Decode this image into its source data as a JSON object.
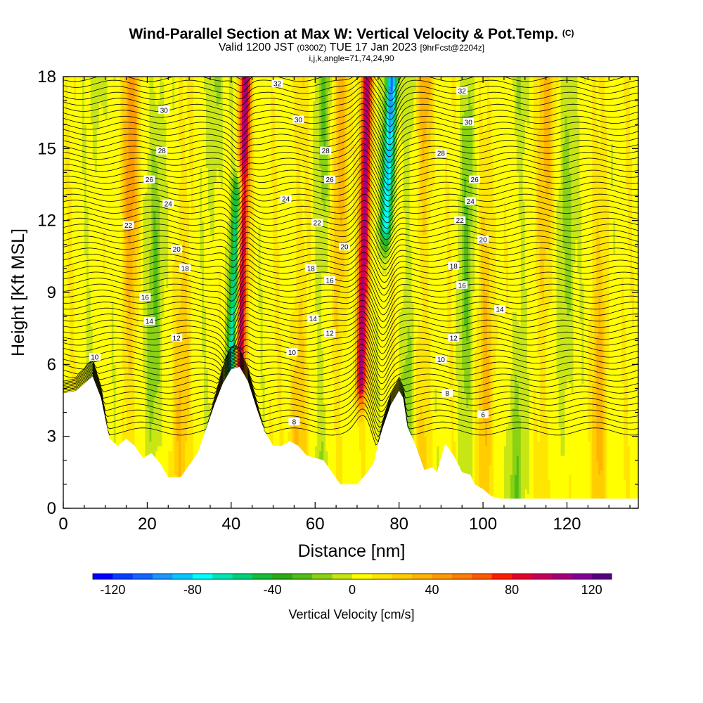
{
  "header": {
    "title": "Wind-Parallel Section at Max W: Vertical Velocity & Pot.Temp.",
    "title_mark": "(C)",
    "subtitle_pre": "Valid 1200 JST",
    "subtitle_mid": "(0300Z)",
    "subtitle_main": "TUE 17 Jan 2023",
    "subtitle_post": "[9hrFcst@2204z]",
    "params": "i,j,k,angle=71,74,24,90"
  },
  "chart_data": {
    "type": "heatmap",
    "xlabel": "Distance [nm]",
    "ylabel": "Height [Kft MSL]",
    "xlim": [
      0,
      137
    ],
    "ylim": [
      0,
      18
    ],
    "x_ticks": [
      0,
      20,
      40,
      60,
      80,
      100,
      120
    ],
    "y_ticks": [
      0,
      3,
      6,
      9,
      12,
      15,
      18
    ],
    "colorbar": {
      "label": "Vertical Velocity [cm/s]",
      "range": [
        -130,
        130
      ],
      "ticks": [
        -120,
        -80,
        -40,
        0,
        40,
        80,
        120
      ],
      "colors": [
        "#0000ff",
        "#0a3cff",
        "#1464ff",
        "#1e96ff",
        "#00c8ff",
        "#00ffff",
        "#00e6b4",
        "#00d278",
        "#14be3c",
        "#2daa14",
        "#50be14",
        "#8cd214",
        "#c8e614",
        "#ffff00",
        "#ffe600",
        "#ffcd00",
        "#ffb400",
        "#ff9b00",
        "#ff7d00",
        "#ff5a00",
        "#ff1e00",
        "#e6002d",
        "#c8005a",
        "#a50078",
        "#820096",
        "#5a0082"
      ]
    },
    "updrafts": [
      {
        "x": 42.5,
        "w": 100
      },
      {
        "x": 71.5,
        "w": 95
      },
      {
        "x": 16,
        "w": 40
      },
      {
        "x": 28,
        "w": 25
      },
      {
        "x": 56,
        "w": 30
      },
      {
        "x": 66,
        "w": 30
      },
      {
        "x": 86,
        "w": 35
      },
      {
        "x": 101,
        "w": 25
      },
      {
        "x": 115,
        "w": 30
      },
      {
        "x": 128,
        "w": 25
      }
    ],
    "downdrafts": [
      {
        "x": 41,
        "w": -80
      },
      {
        "x": 76.5,
        "w": -85
      },
      {
        "x": 8,
        "w": -25
      },
      {
        "x": 22,
        "w": -30
      },
      {
        "x": 36,
        "w": -25
      },
      {
        "x": 62,
        "w": -30
      },
      {
        "x": 82,
        "w": -30
      },
      {
        "x": 96,
        "w": -25
      },
      {
        "x": 108,
        "w": -30
      },
      {
        "x": 120,
        "w": -25
      }
    ],
    "terrain_kft": [
      [
        0,
        4.8
      ],
      [
        3,
        4.9
      ],
      [
        7,
        5.5
      ],
      [
        9,
        4.6
      ],
      [
        11,
        2.9
      ],
      [
        13,
        2.6
      ],
      [
        15,
        2.9
      ],
      [
        17,
        2.6
      ],
      [
        19,
        2.1
      ],
      [
        21,
        2.3
      ],
      [
        23,
        1.9
      ],
      [
        25,
        1.3
      ],
      [
        28,
        1.3
      ],
      [
        30,
        1.8
      ],
      [
        32,
        2.3
      ],
      [
        34,
        3.3
      ],
      [
        36,
        4.3
      ],
      [
        38,
        5.2
      ],
      [
        39,
        5.5
      ],
      [
        40,
        5.8
      ],
      [
        42,
        5.9
      ],
      [
        44,
        5.3
      ],
      [
        46,
        4.2
      ],
      [
        48,
        3.2
      ],
      [
        50,
        2.6
      ],
      [
        52,
        2.6
      ],
      [
        54,
        2.8
      ],
      [
        56,
        2.6
      ],
      [
        58,
        2.2
      ],
      [
        60,
        2.1
      ],
      [
        62,
        2.0
      ],
      [
        64,
        1.5
      ],
      [
        66,
        1.0
      ],
      [
        70,
        1.0
      ],
      [
        72,
        1.4
      ],
      [
        74,
        1.9
      ],
      [
        75,
        2.7
      ],
      [
        76,
        3.3
      ],
      [
        78,
        4.3
      ],
      [
        80,
        4.9
      ],
      [
        81,
        4.6
      ],
      [
        82,
        3.4
      ],
      [
        84,
        2.6
      ],
      [
        86,
        1.6
      ],
      [
        88,
        1.7
      ],
      [
        89,
        1.5
      ],
      [
        91,
        2.7
      ],
      [
        93,
        2.2
      ],
      [
        95,
        1.5
      ],
      [
        97,
        1.4
      ],
      [
        98,
        1.0
      ],
      [
        100,
        0.8
      ],
      [
        102,
        0.5
      ],
      [
        104,
        0.4
      ],
      [
        137,
        0.4
      ]
    ],
    "theta_labels": [
      {
        "v": "10",
        "x": 7.5,
        "y": 6.3
      },
      {
        "v": "22",
        "x": 15.5,
        "y": 11.8
      },
      {
        "v": "26",
        "x": 20.5,
        "y": 13.7
      },
      {
        "v": "28",
        "x": 23.5,
        "y": 14.9
      },
      {
        "v": "30",
        "x": 24,
        "y": 16.6
      },
      {
        "v": "24",
        "x": 25,
        "y": 12.7
      },
      {
        "v": "20",
        "x": 27,
        "y": 10.8
      },
      {
        "v": "18",
        "x": 29,
        "y": 10.0
      },
      {
        "v": "16",
        "x": 19.5,
        "y": 8.8
      },
      {
        "v": "14",
        "x": 20.5,
        "y": 7.8
      },
      {
        "v": "12",
        "x": 27,
        "y": 7.1
      },
      {
        "v": "32",
        "x": 51,
        "y": 17.7
      },
      {
        "v": "30",
        "x": 56,
        "y": 16.2
      },
      {
        "v": "28",
        "x": 62.5,
        "y": 14.9
      },
      {
        "v": "26",
        "x": 63.5,
        "y": 13.7
      },
      {
        "v": "24",
        "x": 53,
        "y": 12.9
      },
      {
        "v": "22",
        "x": 60.5,
        "y": 11.9
      },
      {
        "v": "20",
        "x": 67,
        "y": 10.9
      },
      {
        "v": "18",
        "x": 59,
        "y": 10.0
      },
      {
        "v": "16",
        "x": 63.5,
        "y": 9.5
      },
      {
        "v": "14",
        "x": 59.5,
        "y": 7.9
      },
      {
        "v": "12",
        "x": 63.5,
        "y": 7.3
      },
      {
        "v": "10",
        "x": 54.5,
        "y": 6.5
      },
      {
        "v": "8",
        "x": 55,
        "y": 3.6
      },
      {
        "v": "32",
        "x": 95,
        "y": 17.4
      },
      {
        "v": "30",
        "x": 96.5,
        "y": 16.1
      },
      {
        "v": "28",
        "x": 90,
        "y": 14.8
      },
      {
        "v": "26",
        "x": 98,
        "y": 13.7
      },
      {
        "v": "24",
        "x": 97,
        "y": 12.8
      },
      {
        "v": "22",
        "x": 94.5,
        "y": 12.0
      },
      {
        "v": "20",
        "x": 100,
        "y": 11.2
      },
      {
        "v": "18",
        "x": 93,
        "y": 10.1
      },
      {
        "v": "16",
        "x": 95,
        "y": 9.3
      },
      {
        "v": "14",
        "x": 104,
        "y": 8.3
      },
      {
        "v": "12",
        "x": 93,
        "y": 7.1
      },
      {
        "v": "10",
        "x": 90,
        "y": 6.2
      },
      {
        "v": "8",
        "x": 91.5,
        "y": 4.8
      },
      {
        "v": "6",
        "x": 100,
        "y": 3.9
      }
    ]
  }
}
